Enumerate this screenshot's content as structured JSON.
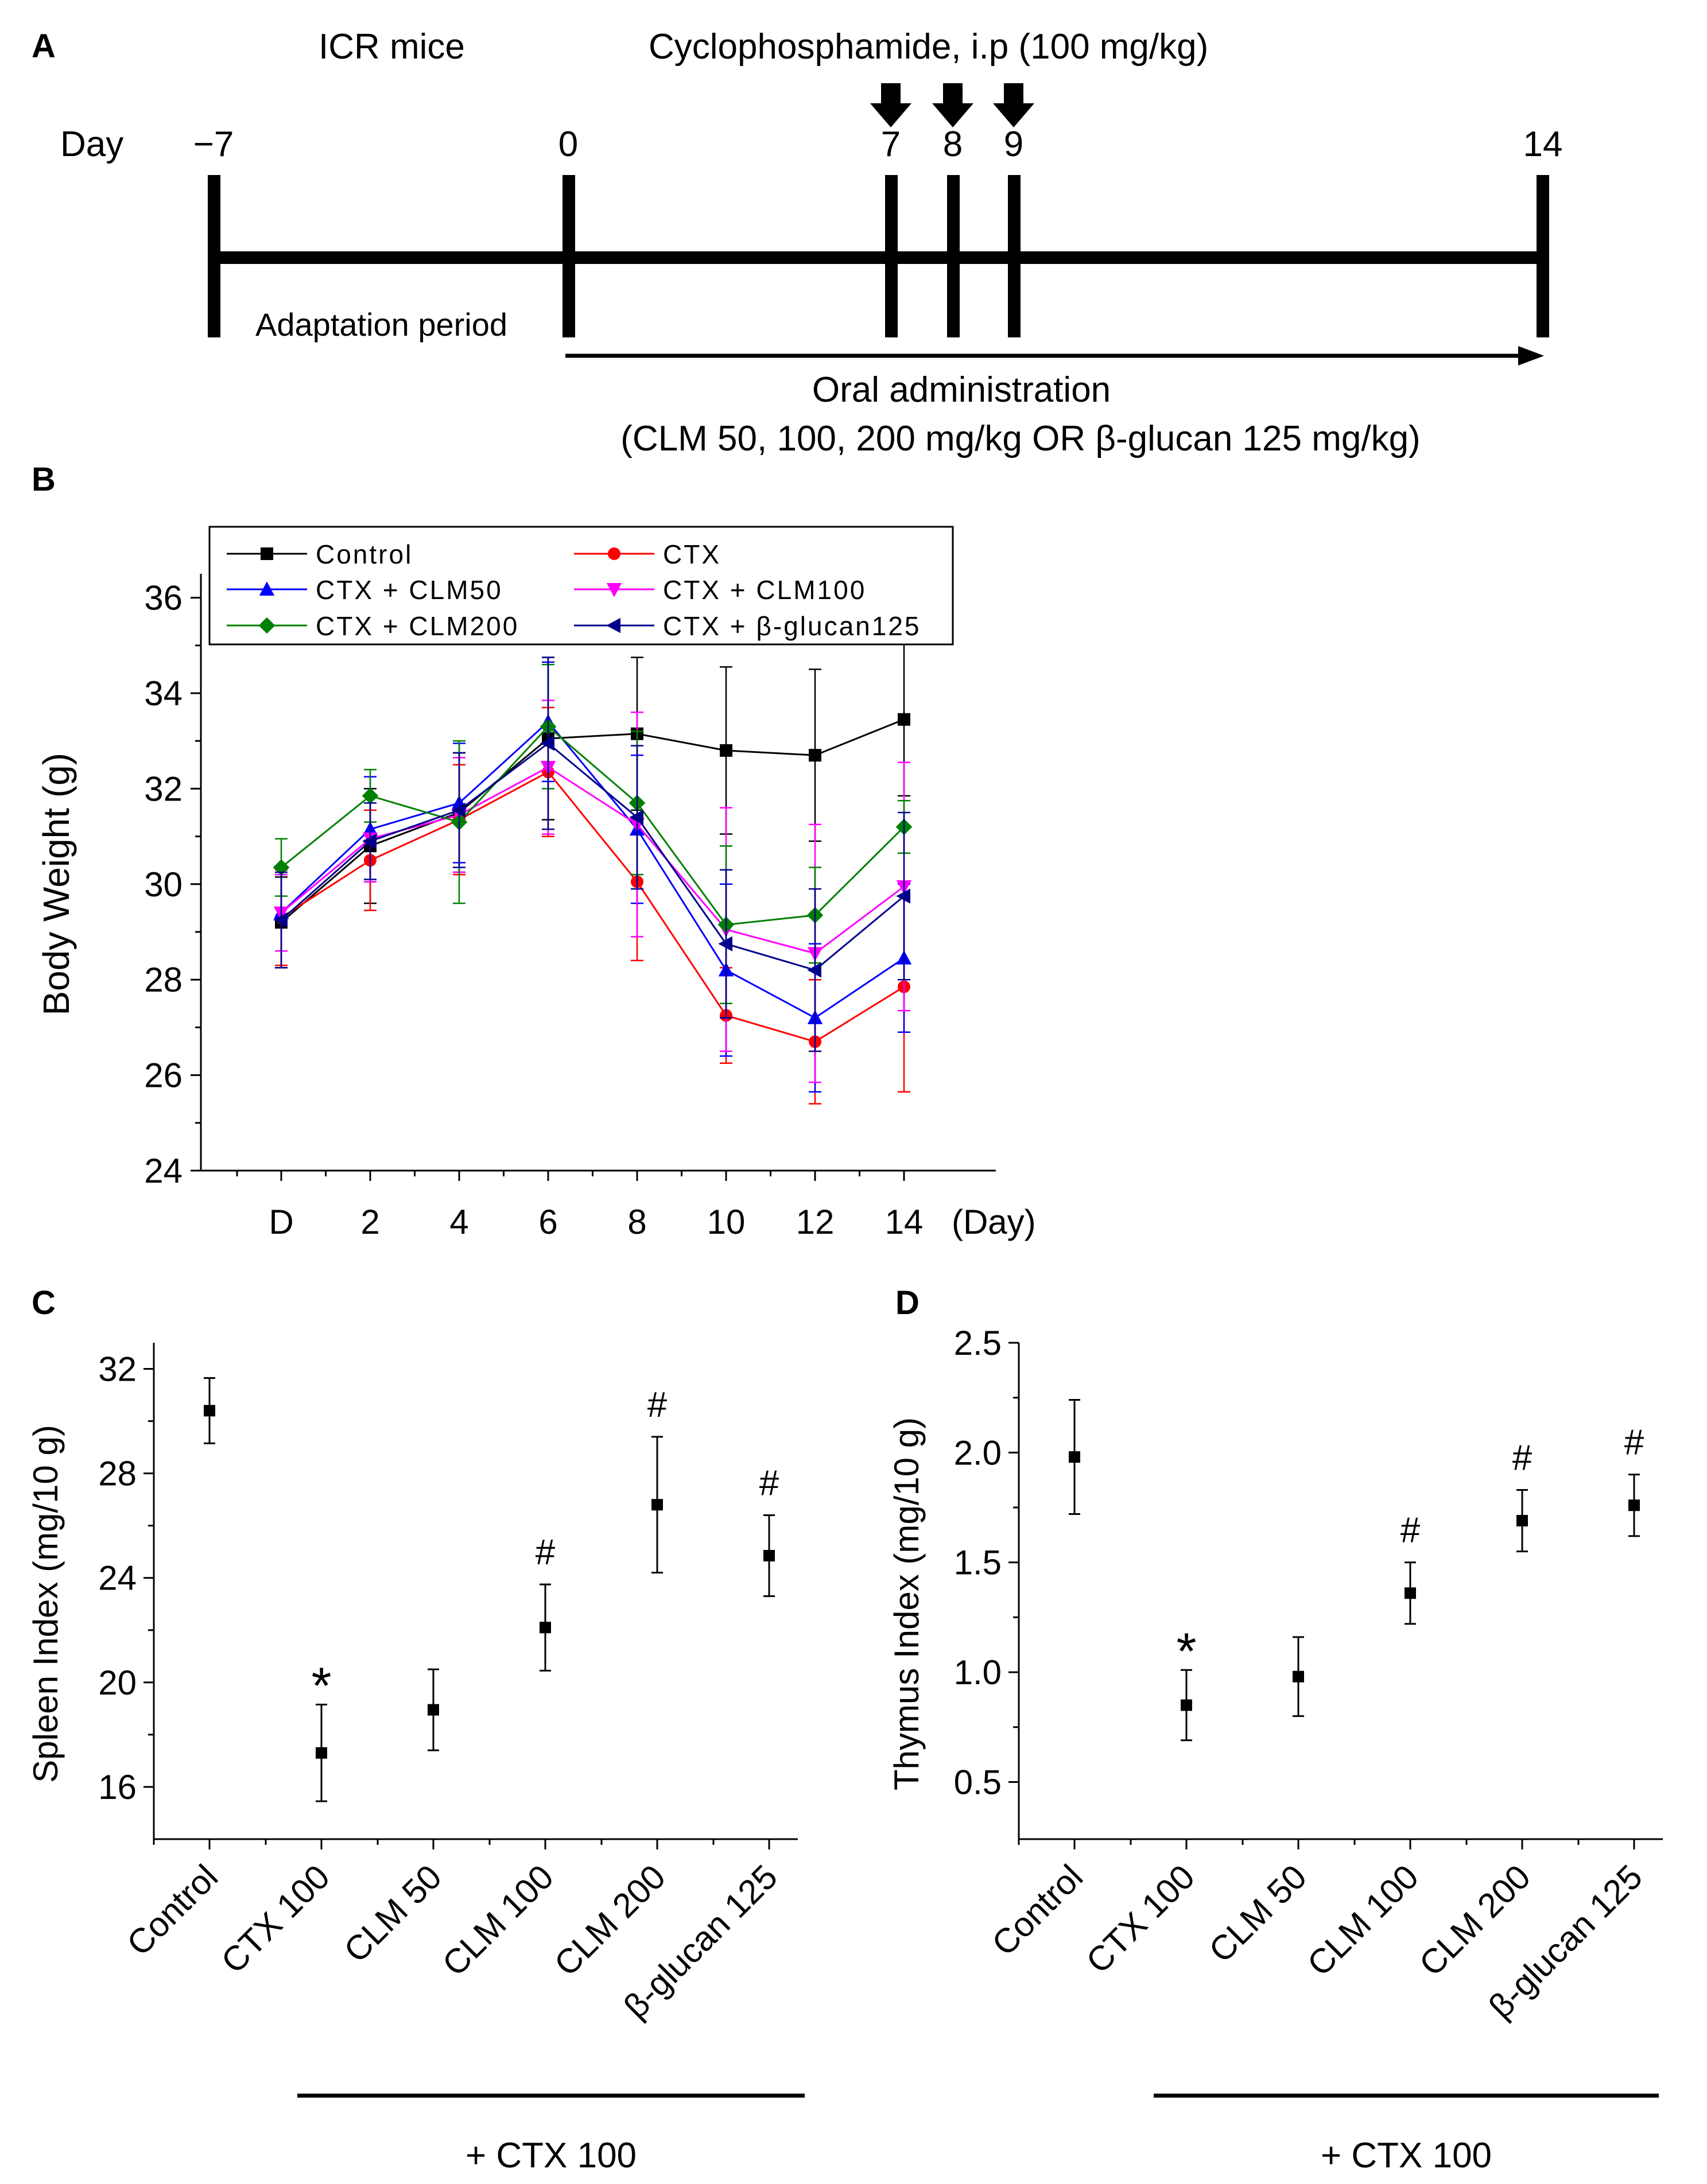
{
  "panels": {
    "a": "A",
    "b": "B",
    "c": "C",
    "d": "D"
  },
  "timeline": {
    "mice_label": "ICR mice",
    "treatment_label": "Cyclophosphamide,  i.p (100 mg/kg)",
    "day_label": "Day",
    "days": [
      "−7",
      "0",
      "7",
      "8",
      "9",
      "14"
    ],
    "injection_days": [
      "7",
      "8",
      "9"
    ],
    "adaptation_label": "Adaptation period",
    "oral_label": "Oral administration",
    "oral_detail": "(CLM 50, 100, 200 mg/kg  OR β-glucan  125 mg/kg)"
  },
  "chart_data": [
    {
      "id": "body-weight",
      "type": "line",
      "title": "",
      "xlabel": "(Day)",
      "ylabel": "Body Weight (g)",
      "categories": [
        "D",
        "2",
        "4",
        "6",
        "8",
        "10",
        "12",
        "14"
      ],
      "ylim": [
        24,
        36.5
      ],
      "yticks": [
        24,
        26,
        28,
        30,
        32,
        34,
        36
      ],
      "yticklabels": [
        "24",
        "26",
        "28",
        "30",
        "32",
        "34",
        "36"
      ],
      "legend_position": "top-left",
      "series": [
        {
          "name": "Control",
          "color": "#000000",
          "marker": "square",
          "values": [
            29.2,
            30.8,
            31.5,
            33.05,
            33.15,
            32.8,
            32.7,
            33.45
          ],
          "errors": [
            0.95,
            1.2,
            1.25,
            1.7,
            1.6,
            1.75,
            1.8,
            1.6
          ]
        },
        {
          "name": "CTX",
          "color": "#ff0000",
          "marker": "circle",
          "values": [
            29.3,
            30.5,
            31.35,
            32.35,
            30.05,
            27.25,
            26.7,
            27.85
          ],
          "errors": [
            1.0,
            1.05,
            1.15,
            1.35,
            1.65,
            1.0,
            1.3,
            2.2
          ]
        },
        {
          "name": "CTX + CLM50",
          "color": "#0000ff",
          "marker": "triangle-up",
          "values": [
            29.4,
            31.15,
            31.7,
            33.4,
            31.15,
            28.2,
            27.2,
            28.45
          ],
          "errors": [
            0.8,
            1.1,
            1.25,
            1.25,
            1.55,
            1.8,
            1.55,
            1.55
          ]
        },
        {
          "name": "CTX + CLM100",
          "color": "#ff00ff",
          "marker": "triangle-down",
          "values": [
            29.4,
            30.95,
            31.45,
            32.45,
            31.25,
            29.05,
            28.55,
            29.95
          ],
          "errors": [
            0.8,
            0.9,
            1.2,
            1.4,
            2.35,
            2.55,
            2.7,
            2.6
          ]
        },
        {
          "name": "CTX + CLM200",
          "color": "#008000",
          "marker": "diamond",
          "values": [
            30.35,
            31.85,
            31.3,
            33.3,
            31.7,
            29.15,
            29.35,
            31.2
          ],
          "errors": [
            0.6,
            0.55,
            1.7,
            1.3,
            1.5,
            1.65,
            1.0,
            0.55
          ]
        },
        {
          "name": "CTX + β-glucan125",
          "color": "#00008b",
          "marker": "triangle-left",
          "values": [
            29.25,
            30.9,
            31.55,
            32.95,
            31.4,
            28.75,
            28.2,
            29.75
          ],
          "errors": [
            1.0,
            0.8,
            1.2,
            1.8,
            1.5,
            1.55,
            1.7,
            1.75
          ]
        }
      ]
    },
    {
      "id": "spleen-index",
      "type": "scatter",
      "xlabel": "",
      "ylabel": "Spleen Index (mg/10 g)",
      "categories": [
        "Control",
        "CTX 100",
        "CLM 50",
        "CLM 100",
        "CLM 200",
        "β-glucan 125"
      ],
      "values": [
        30.4,
        17.3,
        18.95,
        22.1,
        26.8,
        24.85
      ],
      "errors": [
        1.25,
        1.85,
        1.55,
        1.65,
        2.6,
        1.55
      ],
      "annotations": [
        "",
        "*",
        "",
        "#",
        "#",
        "#"
      ],
      "ylim": [
        14,
        33
      ],
      "yticks": [
        16,
        20,
        24,
        28,
        32
      ],
      "yticklabels": [
        "16",
        "20",
        "24",
        "28",
        "32"
      ],
      "group_label": "+ CTX 100",
      "color": "#000000"
    },
    {
      "id": "thymus-index",
      "type": "scatter",
      "xlabel": "",
      "ylabel": "Thymus Index (mg/10 g)",
      "categories": [
        "Control",
        "CTX 100",
        "CLM 50",
        "CLM 100",
        "CLM 200",
        "β-glucan 125"
      ],
      "values": [
        1.98,
        0.85,
        0.98,
        1.36,
        1.69,
        1.76
      ],
      "errors": [
        0.26,
        0.16,
        0.18,
        0.14,
        0.14,
        0.14
      ],
      "annotations": [
        "",
        "*",
        "",
        "#",
        "#",
        "#"
      ],
      "ylim": [
        0.24,
        2.5
      ],
      "yticks": [
        0.5,
        1.0,
        1.5,
        2.0,
        2.5
      ],
      "yticklabels": [
        "0.5",
        "1.0",
        "1.5",
        "2.0",
        "2.5"
      ],
      "group_label": "+ CTX 100",
      "color": "#000000"
    }
  ]
}
